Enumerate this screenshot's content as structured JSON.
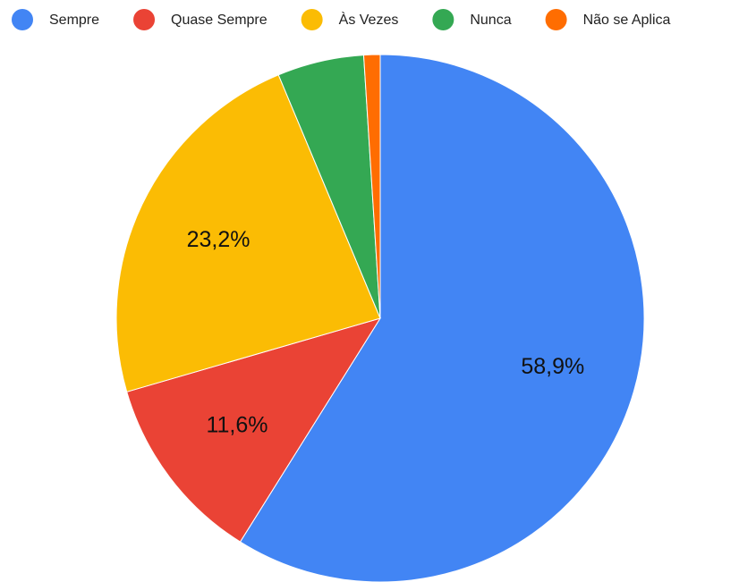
{
  "chart_data": {
    "type": "pie",
    "categories": [
      "Sempre",
      "Quase Sempre",
      "Às Vezes",
      "Nunca",
      "Não se Aplica"
    ],
    "values": [
      58.9,
      11.6,
      23.2,
      5.3,
      1.0
    ],
    "value_labels": [
      "58,9%",
      "11,6%",
      "23,2%",
      null,
      null
    ],
    "colors": [
      "#4285f4",
      "#ea4335",
      "#fbbc04",
      "#34a853",
      "#ff6d01"
    ],
    "legend": "top"
  }
}
